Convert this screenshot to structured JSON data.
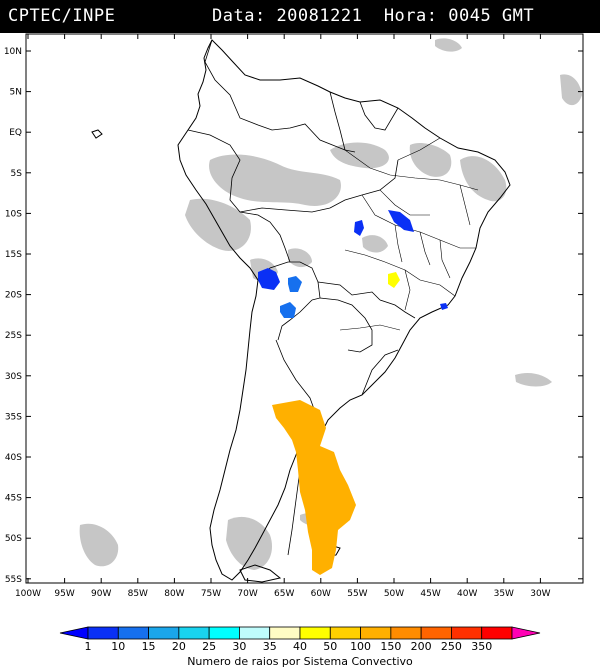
{
  "header": {
    "source": "CPTEC/INPE",
    "date_label": "Data:",
    "date_value": "20081221",
    "time_label": "Hora:",
    "time_value": "0045 GMT"
  },
  "map": {
    "lat_labels": [
      "10N",
      "5N",
      "EQ",
      "5S",
      "10S",
      "15S",
      "20S",
      "25S",
      "30S",
      "35S",
      "40S",
      "45S",
      "50S",
      "55S"
    ],
    "lon_labels": [
      "100W",
      "95W",
      "90W",
      "85W",
      "80W",
      "75W",
      "70W",
      "65W",
      "60W",
      "55W",
      "50W",
      "45W",
      "40W",
      "35W",
      "30W"
    ]
  },
  "colorbar": {
    "title": "Numero de raios por Sistema Convectivo",
    "ticks": [
      "1",
      "10",
      "15",
      "20",
      "25",
      "30",
      "35",
      "40",
      "50",
      "100",
      "150",
      "200",
      "250",
      "350"
    ],
    "colors": [
      "#0000ff",
      "#0a30f5",
      "#1670ee",
      "#1aa6ea",
      "#19d3ef",
      "#00ffff",
      "#bffcfc",
      "#fffcc4",
      "#ffff00",
      "#ffd000",
      "#ffb000",
      "#ff8c00",
      "#ff6400",
      "#ff3000",
      "#ff0000",
      "#ff00b4"
    ]
  },
  "regions": [
    {
      "name": "cluster-patagonia",
      "color": "#ffb000"
    },
    {
      "name": "cluster-bolivia",
      "color": "#0a30f5"
    },
    {
      "name": "cluster-chaco",
      "color": "#1670ee"
    },
    {
      "name": "cluster-paraguay",
      "color": "#1670ee"
    },
    {
      "name": "cluster-mato-grosso",
      "color": "#0a30f5"
    },
    {
      "name": "cluster-tocantins",
      "color": "#0a30f5"
    },
    {
      "name": "cluster-goias",
      "color": "#ffff00"
    },
    {
      "name": "cluster-sao-paulo",
      "color": "#0a30f5"
    }
  ]
}
